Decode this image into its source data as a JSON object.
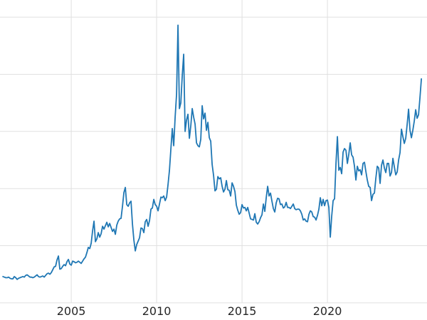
{
  "page": {
    "background_color": "#ffffff"
  },
  "chart_data": {
    "type": "line",
    "title": "",
    "subtitle": "",
    "xlabel": "",
    "ylabel": "",
    "legend": "none",
    "grid": "on",
    "line_color": "#1f77b4",
    "grid_color": "#e0e0e0",
    "tick_label_color": "#262626",
    "xlim": [
      2000.83,
      2025.83
    ],
    "ylim": [
      -3,
      53
    ],
    "x_ticks": [
      {
        "value": 2005,
        "label": "2005"
      },
      {
        "value": 2010,
        "label": "2010"
      },
      {
        "value": 2015,
        "label": "2015"
      },
      {
        "value": 2020,
        "label": "2020"
      }
    ],
    "y_gridlines": [
      0,
      10,
      20,
      30,
      40,
      50
    ],
    "x_start": 2001.0,
    "x_step": 0.0833333,
    "x_unit": "year (monthly samples)",
    "values": [
      4.6,
      4.5,
      4.4,
      4.4,
      4.5,
      4.3,
      4.2,
      4.2,
      4.6,
      4.4,
      4.1,
      4.3,
      4.4,
      4.5,
      4.6,
      4.5,
      4.8,
      4.9,
      4.7,
      4.5,
      4.5,
      4.4,
      4.5,
      4.7,
      4.9,
      4.6,
      4.5,
      4.6,
      4.7,
      4.5,
      4.8,
      5.1,
      5.2,
      5.0,
      5.3,
      5.8,
      6.3,
      6.4,
      7.5,
      8.2,
      5.9,
      6.0,
      6.4,
      6.7,
      6.5,
      7.2,
      7.6,
      6.8,
      6.6,
      7.3,
      7.2,
      7.0,
      7.1,
      7.3,
      7.1,
      6.9,
      7.3,
      7.7,
      8.0,
      8.8,
      9.7,
      9.5,
      10.4,
      12.6,
      14.3,
      10.7,
      11.2,
      12.3,
      11.5,
      12.1,
      13.4,
      12.9,
      13.5,
      14.1,
      13.3,
      13.9,
      13.2,
      12.5,
      12.9,
      12.0,
      13.6,
      14.3,
      14.7,
      14.8,
      16.9,
      19.3,
      20.2,
      17.2,
      16.9,
      17.5,
      17.8,
      13.8,
      11.0,
      9.1,
      10.2,
      10.8,
      11.4,
      13.1,
      13.0,
      12.3,
      14.2,
      14.6,
      13.4,
      14.4,
      16.4,
      16.6,
      18.1,
      17.2,
      16.9,
      16.1,
      17.3,
      18.5,
      18.4,
      18.7,
      17.9,
      18.5,
      20.7,
      23.2,
      26.9,
      30.5,
      27.5,
      32.5,
      36.5,
      48.6,
      34.0,
      35.0,
      39.8,
      43.5,
      30.0,
      32.0,
      33.0,
      28.8,
      31.0,
      34.0,
      32.5,
      31.3,
      28.0,
      27.5,
      27.3,
      28.6,
      34.5,
      32.2,
      33.2,
      30.2,
      31.6,
      28.9,
      28.3,
      24.2,
      22.3,
      19.6,
      19.9,
      22.1,
      21.7,
      21.9,
      20.4,
      19.4,
      19.9,
      21.4,
      19.8,
      19.7,
      18.7,
      21.0,
      20.4,
      19.5,
      17.1,
      16.2,
      15.5,
      15.8,
      17.2,
      16.6,
      16.7,
      16.1,
      16.7,
      15.7,
      14.7,
      14.6,
      14.5,
      15.6,
      14.1,
      13.8,
      14.2,
      14.9,
      15.4,
      17.3,
      16.0,
      18.4,
      20.4,
      18.7,
      19.2,
      17.8,
      16.5,
      15.9,
      17.5,
      18.3,
      18.2,
      17.2,
      17.3,
      16.6,
      16.8,
      17.6,
      16.7,
      16.7,
      16.5,
      16.9,
      17.3,
      16.5,
      16.3,
      16.4,
      16.4,
      16.1,
      15.5,
      14.5,
      14.7,
      14.3,
      14.2,
      15.5,
      16.1,
      15.9,
      15.1,
      15.0,
      14.5,
      15.3,
      16.4,
      18.4,
      17.0,
      18.1,
      17.0,
      17.9,
      18.0,
      16.7,
      11.5,
      15.2,
      17.9,
      18.2,
      24.4,
      29.1,
      23.2,
      23.7,
      22.6,
      26.4,
      27.0,
      26.7,
      24.4,
      26.0,
      28.0,
      25.9,
      25.5,
      23.9,
      21.5,
      23.9,
      23.1,
      23.3,
      22.4,
      24.4,
      24.6,
      23.0,
      21.5,
      20.4,
      20.2,
      17.9,
      19.0,
      19.2,
      21.8,
      23.9,
      23.6,
      20.9,
      24.1,
      25.0,
      23.6,
      22.8,
      24.4,
      24.4,
      22.2,
      22.8,
      25.3,
      23.8,
      22.4,
      22.9,
      25.0,
      26.3,
      30.4,
      29.1,
      27.9,
      28.8,
      31.2,
      33.9,
      30.2,
      28.9,
      30.2,
      31.8,
      33.8,
      32.3,
      32.9,
      35.9,
      39.2
    ]
  }
}
